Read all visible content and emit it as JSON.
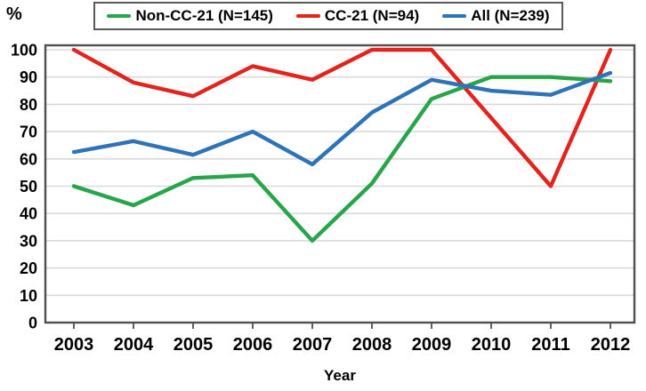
{
  "chart_data": {
    "type": "line",
    "title": "",
    "xlabel": "Year",
    "ylabel": "%",
    "x": [
      2003,
      2004,
      2005,
      2006,
      2007,
      2008,
      2009,
      2010,
      2011,
      2012
    ],
    "yticks": [
      0,
      10,
      20,
      30,
      40,
      50,
      60,
      70,
      80,
      90,
      100
    ],
    "ylim": [
      0,
      100
    ],
    "grid": true,
    "legend_position": "top",
    "series": [
      {
        "name": "Non-CC-21 (N=145)",
        "color": "#28a44b",
        "values": [
          50,
          43,
          53,
          54,
          30,
          51,
          82,
          90,
          90,
          88.5
        ]
      },
      {
        "name": "CC-21 (N=94)",
        "color": "#e2231e",
        "values": [
          100,
          88,
          83,
          94,
          89,
          100,
          100,
          75,
          50,
          100
        ]
      },
      {
        "name": "All (N=239)",
        "color": "#2e73b5",
        "values": [
          62.5,
          66.5,
          61.5,
          70,
          58,
          77,
          89,
          85,
          83.5,
          91.5
        ]
      }
    ]
  },
  "colors": {
    "background": "#ffffff",
    "gridline": "#dadada",
    "axis_frame": "#4f4f4f",
    "legend_border": "#5a5a5a",
    "text": "#000000"
  }
}
